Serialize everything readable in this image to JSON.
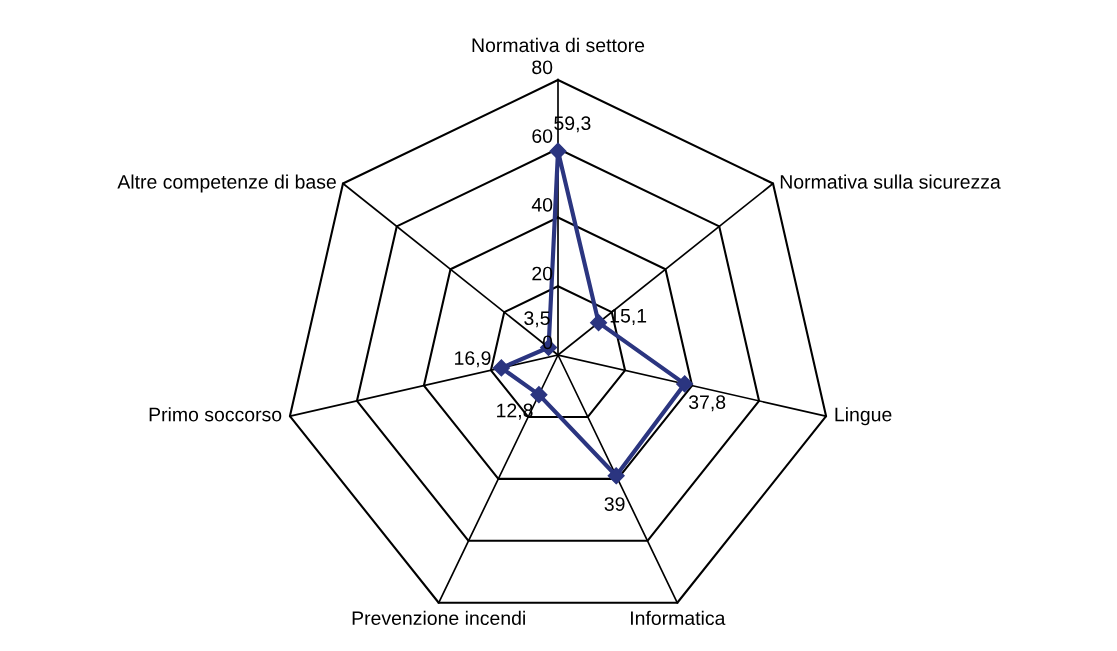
{
  "chart_data": {
    "type": "radar",
    "categories": [
      "Normativa di settore",
      "Normativa sulla sicurezza",
      "Lingue",
      "Informatica",
      "Prevenzione incendi",
      "Primo soccorso",
      "Altre competenze di base"
    ],
    "series": [
      {
        "color": "#2b3580",
        "values": [
          59.3,
          15.1,
          37.8,
          39,
          12.8,
          16.9,
          3.5
        ],
        "value_labels": [
          "59,3",
          "15,1",
          "37,8",
          "39",
          "12,8",
          "16,9",
          "3,5"
        ]
      }
    ],
    "ylim": [
      0,
      80
    ],
    "yticks": [
      0,
      20,
      40,
      60,
      80
    ],
    "marker": "diamond",
    "line_style": "solid",
    "grid": true
  }
}
